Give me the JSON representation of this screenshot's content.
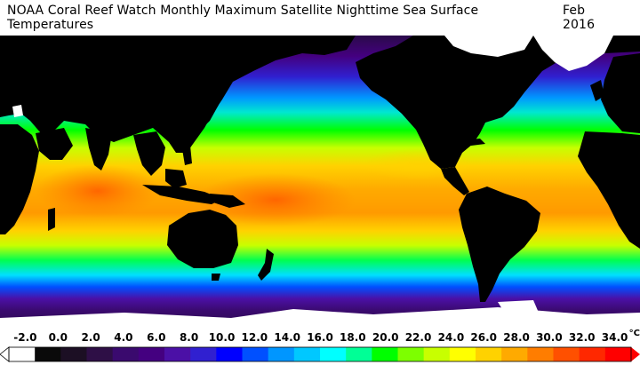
{
  "title": "NOAA Coral Reef Watch Monthly Maximum Satellite Nighttime Sea Surface Temperatures",
  "date": "Feb 2016",
  "legend": {
    "ticks": [
      "-2.0",
      "0.0",
      "2.0",
      "4.0",
      "6.0",
      "8.0",
      "10.0",
      "12.0",
      "14.0",
      "16.0",
      "18.0",
      "20.0",
      "22.0",
      "24.0",
      "26.0",
      "28.0",
      "30.0",
      "32.0",
      "34.0"
    ],
    "unit": "°C",
    "min": -3,
    "max": 35,
    "colors": [
      "#ffffff",
      "#0a0a0a",
      "#1c0f24",
      "#2e0f46",
      "#3a0a6e",
      "#440080",
      "#4b10a6",
      "#3020d0",
      "#0000ff",
      "#0050ff",
      "#0096ff",
      "#00c8ff",
      "#00ffff",
      "#00ff96",
      "#00ff00",
      "#7dff00",
      "#c8ff00",
      "#ffff00",
      "#ffd200",
      "#ffaa00",
      "#ff7d00",
      "#ff5000",
      "#ff2800",
      "#ff0000"
    ]
  },
  "map": {
    "projection": "equirectangular",
    "land_color": "#000000",
    "ice_color": "#ffffff"
  }
}
